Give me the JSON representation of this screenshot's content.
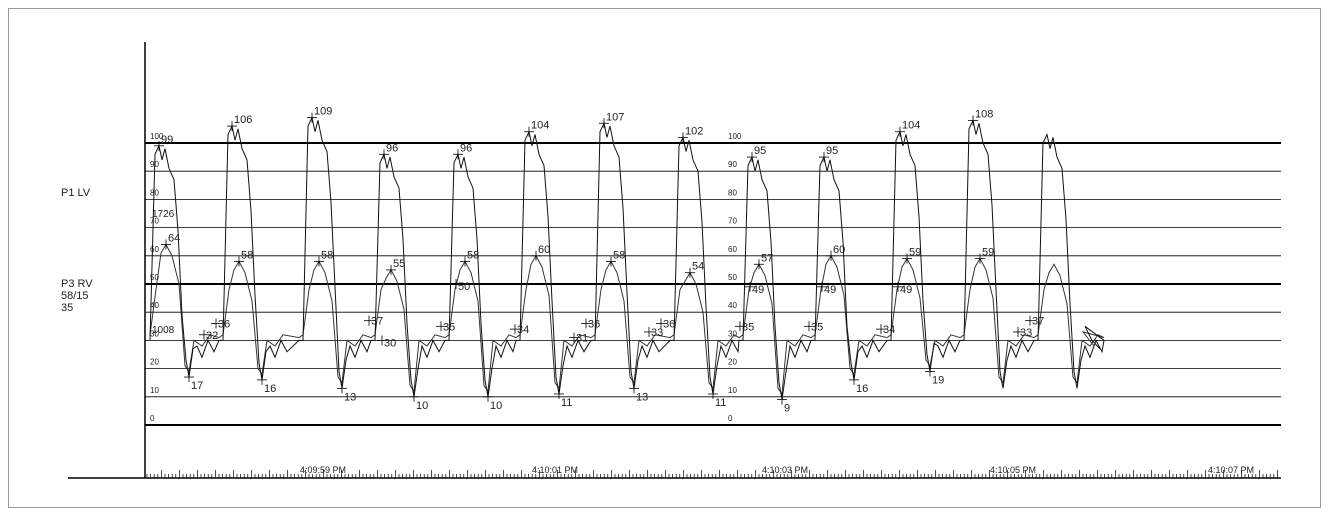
{
  "chart_data": {
    "type": "line",
    "title": "",
    "xlabel": "",
    "ylabel": "",
    "ylim": [
      0,
      100
    ],
    "channel_labels": [
      {
        "name": "P1 LV"
      },
      {
        "name": "P3 RV",
        "lines": [
          "P3 RV",
          "58/15",
          "35"
        ]
      }
    ],
    "scale_ticks": [
      0,
      10,
      20,
      30,
      40,
      50,
      60,
      70,
      80,
      90,
      100
    ],
    "time_labels": [
      "4:09:59 PM",
      "4:10:01 PM",
      "4:10:03 PM",
      "4:10:05 PM",
      "4:10:07 PM"
    ],
    "side_readouts": [
      "1726",
      "1008"
    ],
    "series": [
      {
        "name": "P1 LV",
        "peaks": [
          99,
          106,
          109,
          96,
          96,
          104,
          107,
          102,
          95,
          95,
          104,
          108
        ],
        "troughs": [
          17,
          16,
          13,
          10,
          10,
          11,
          13,
          11,
          9,
          16,
          19
        ]
      },
      {
        "name": "P3 RV",
        "peaks": [
          64,
          58,
          58,
          55,
          58,
          60,
          58,
          54,
          57,
          60,
          59,
          59
        ],
        "diastolic": [
          36,
          37,
          35,
          34,
          36,
          36,
          35,
          35,
          34,
          37
        ],
        "mid": [
          32,
          31,
          33,
          33
        ],
        "notch": [
          30,
          50,
          49,
          49,
          49
        ]
      }
    ]
  }
}
